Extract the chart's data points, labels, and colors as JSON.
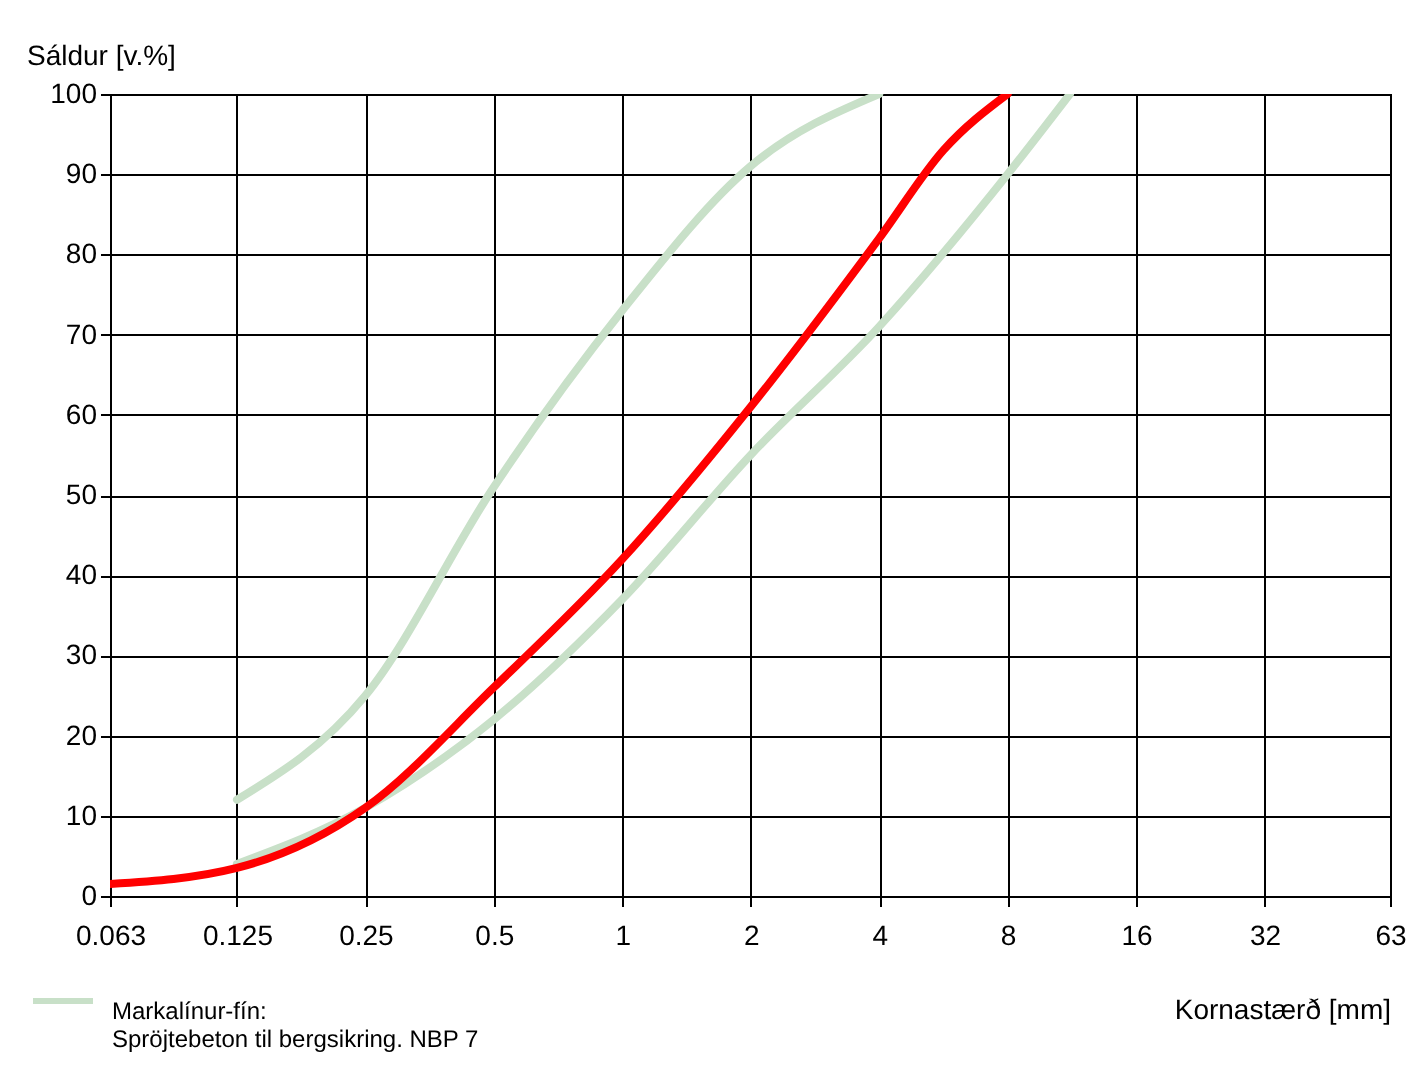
{
  "chart_data": {
    "type": "line",
    "ylabel": "Sáldur [v.%]",
    "xlabel": "Kornastærð [mm]",
    "log": "x",
    "xlim": [
      0.063,
      63
    ],
    "xticks": [
      0.063,
      0.125,
      0.25,
      0.5,
      1,
      2,
      4,
      8,
      16,
      32,
      63
    ],
    "ylim": [
      0,
      100
    ],
    "yticks": [
      0,
      10,
      20,
      30,
      40,
      50,
      60,
      70,
      80,
      90,
      100
    ],
    "grid": true,
    "legend": "bottom left",
    "line_style": "solid",
    "marker": "none",
    "series": [
      {
        "name": "Markalínur-fín:\nSpröjtebeton til bergsikring. NBP 7",
        "color": "#c8e0c8",
        "x": [
          0.125,
          0.25,
          0.5,
          1,
          2,
          4
        ],
        "values": [
          12,
          25,
          51,
          73,
          91,
          100
        ]
      },
      {
        "color": "#c8e0c8",
        "x": [
          0.125,
          0.25,
          0.5,
          1,
          2,
          4,
          8,
          11.2
        ],
        "values": [
          4,
          11,
          22,
          37,
          55,
          71,
          90,
          100
        ]
      },
      {
        "color": "#ff0000",
        "x": [
          0.063,
          0.125,
          0.25,
          0.5,
          1,
          2,
          4,
          5.66,
          8
        ],
        "values": [
          1.5,
          3.5,
          11,
          26,
          42,
          61,
          82,
          93,
          100
        ]
      }
    ]
  }
}
